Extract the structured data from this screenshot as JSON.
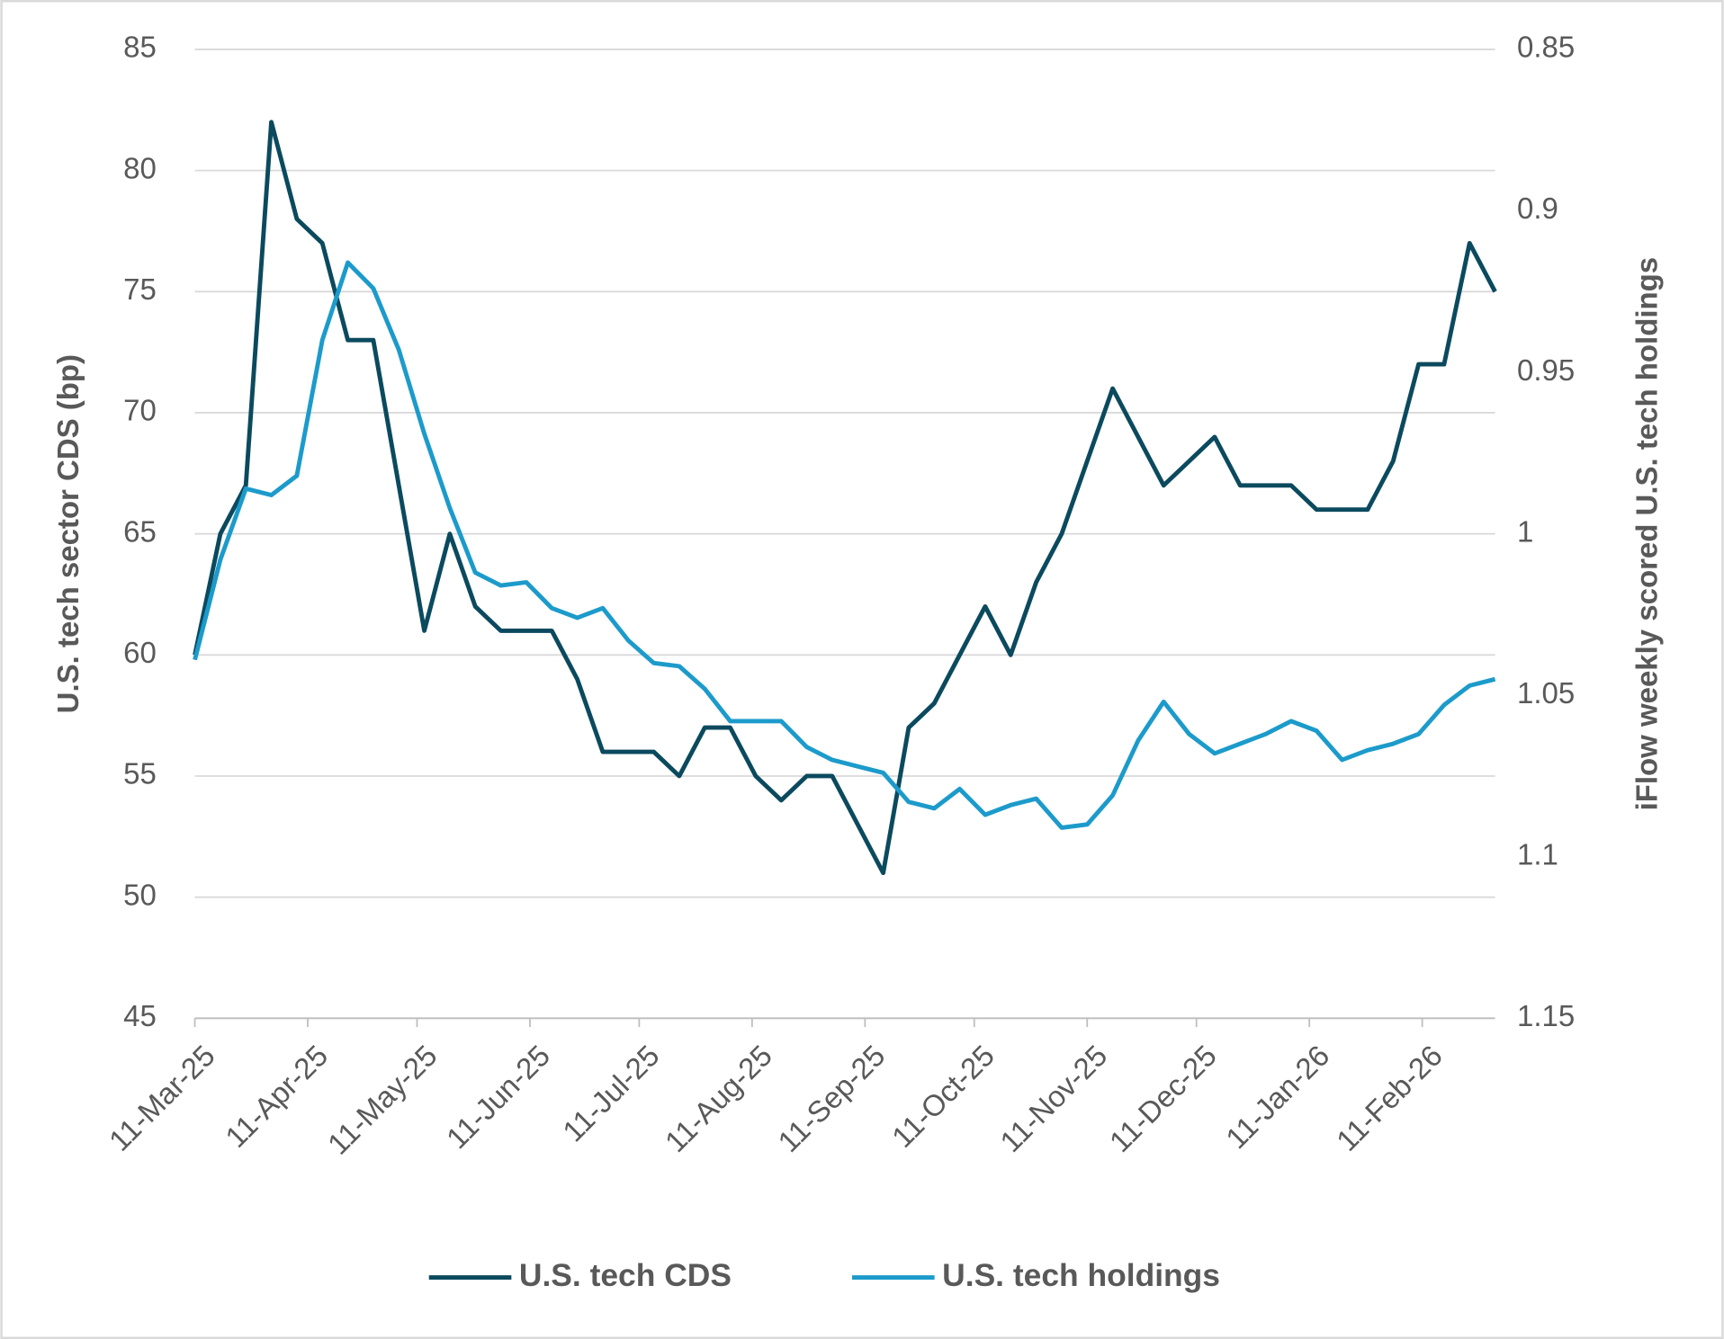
{
  "chart_data": {
    "type": "line",
    "x": [
      "2025-03-11",
      "2025-03-18",
      "2025-03-25",
      "2025-04-01",
      "2025-04-08",
      "2025-04-15",
      "2025-04-22",
      "2025-04-29",
      "2025-05-06",
      "2025-05-13",
      "2025-05-20",
      "2025-05-27",
      "2025-06-03",
      "2025-06-10",
      "2025-06-17",
      "2025-06-24",
      "2025-07-01",
      "2025-07-08",
      "2025-07-15",
      "2025-07-22",
      "2025-07-29",
      "2025-08-05",
      "2025-08-12",
      "2025-08-19",
      "2025-08-26",
      "2025-09-02",
      "2025-09-09",
      "2025-09-16",
      "2025-09-23",
      "2025-09-30",
      "2025-10-07",
      "2025-10-14",
      "2025-10-21",
      "2025-10-28",
      "2025-11-04",
      "2025-11-11",
      "2025-11-18",
      "2025-11-25",
      "2025-12-02",
      "2025-12-09",
      "2025-12-16",
      "2025-12-23",
      "2025-12-30",
      "2026-01-06",
      "2026-01-13",
      "2026-01-20",
      "2026-01-27",
      "2026-02-03",
      "2026-02-10",
      "2026-02-17",
      "2026-02-24",
      "2026-03-03"
    ],
    "xlim": [
      "2025-03-11",
      "2026-03-03"
    ],
    "xticks": [
      {
        "value": "2025-03-11",
        "label": "11-Mar-25"
      },
      {
        "value": "2025-04-11",
        "label": "11-Apr-25"
      },
      {
        "value": "2025-05-11",
        "label": "11-May-25"
      },
      {
        "value": "2025-06-11",
        "label": "11-Jun-25"
      },
      {
        "value": "2025-07-11",
        "label": "11-Jul-25"
      },
      {
        "value": "2025-08-11",
        "label": "11-Aug-25"
      },
      {
        "value": "2025-09-11",
        "label": "11-Sep-25"
      },
      {
        "value": "2025-10-11",
        "label": "11-Oct-25"
      },
      {
        "value": "2025-11-11",
        "label": "11-Nov-25"
      },
      {
        "value": "2025-12-11",
        "label": "11-Dec-25"
      },
      {
        "value": "2026-01-11",
        "label": "11-Jan-26"
      },
      {
        "value": "2026-02-11",
        "label": "11-Feb-26"
      }
    ],
    "ylabel": "U.S. tech sector CDS (bp)",
    "y2label": "iFlow weekly scored U.S. tech holdings",
    "ylim": [
      45,
      85
    ],
    "yticks": [
      45,
      50,
      55,
      60,
      65,
      70,
      75,
      80,
      85
    ],
    "y2lim": [
      1.15,
      0.85
    ],
    "y2ticks": [
      1.15,
      1.1,
      1.05,
      1,
      0.95,
      0.9,
      0.85
    ],
    "grid": true,
    "legend": "bottom",
    "series": [
      {
        "name": "U.S. tech CDS",
        "color": "#0b4a5e",
        "values": [
          60,
          65,
          67,
          82,
          78,
          77,
          73,
          73,
          67,
          61,
          65,
          62,
          61,
          61,
          61,
          59,
          56,
          56,
          56,
          55,
          57,
          57,
          55,
          54,
          55,
          55,
          53,
          51,
          57,
          58,
          60,
          62,
          60,
          63,
          65,
          68,
          71,
          69,
          67,
          68,
          69,
          67,
          67,
          67,
          66,
          66,
          66,
          68,
          72,
          72,
          77,
          75
        ]
      },
      {
        "name": "U.S. tech holdings",
        "color": "#1c9bcb",
        "axis": "y2",
        "values": [
          1.039,
          1.008,
          0.986,
          0.988,
          0.982,
          0.94,
          0.916,
          0.924,
          0.943,
          0.969,
          0.992,
          1.012,
          1.016,
          1.015,
          1.023,
          1.026,
          1.023,
          1.033,
          1.04,
          1.041,
          1.048,
          1.058,
          1.058,
          1.058,
          1.066,
          1.07,
          1.072,
          1.074,
          1.083,
          1.085,
          1.079,
          1.087,
          1.084,
          1.082,
          1.091,
          1.09,
          1.081,
          1.064,
          1.052,
          1.062,
          1.068,
          1.065,
          1.062,
          1.058,
          1.061,
          1.07,
          1.067,
          1.065,
          1.062,
          1.053,
          1.047,
          1.045
        ]
      }
    ]
  }
}
